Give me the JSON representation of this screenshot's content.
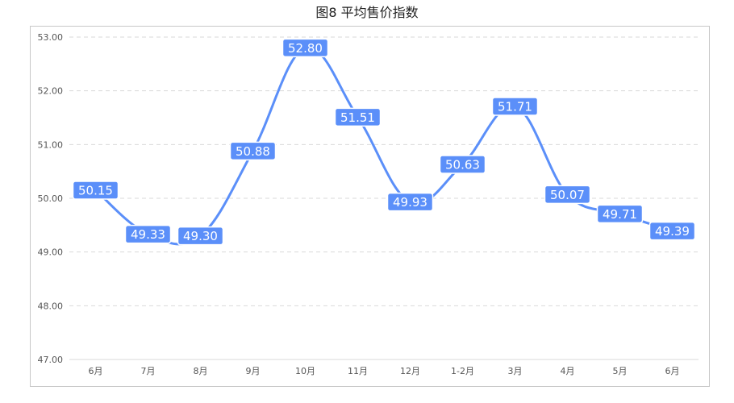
{
  "chart_data": {
    "type": "line",
    "title": "图8 平均售价指数",
    "categories": [
      "6月",
      "7月",
      "8月",
      "9月",
      "10月",
      "11月",
      "12月",
      "1-2月",
      "3月",
      "4月",
      "5月",
      "6月"
    ],
    "series": [
      {
        "values": [
          50.15,
          49.33,
          49.3,
          50.88,
          52.8,
          51.51,
          49.93,
          50.63,
          51.71,
          50.07,
          49.71,
          49.39
        ]
      }
    ],
    "ylim": [
      47.0,
      53.0
    ],
    "yticks": [
      "47.00",
      "48.00",
      "49.00",
      "50.00",
      "51.00",
      "52.00",
      "53.00"
    ],
    "grid": true,
    "line_color": "#5b8ff9",
    "label_bg": "#5b8ff9"
  }
}
